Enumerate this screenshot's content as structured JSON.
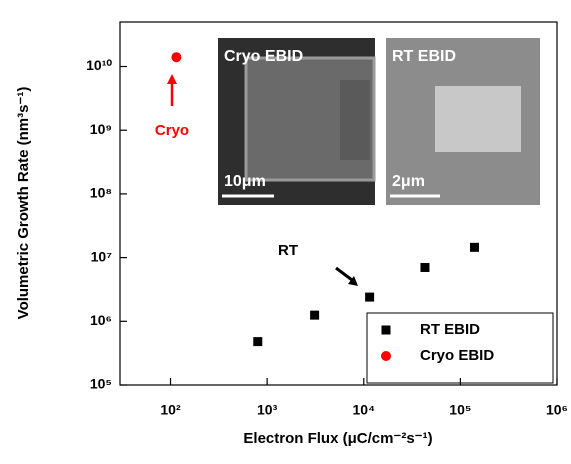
{
  "chart_data": {
    "type": "scatter",
    "x_label": "Electron Flux (μC/cm⁻²s⁻¹)",
    "y_label": "Volumetric Growth Rate (nm³s⁻¹)",
    "log_x": true,
    "log_y": true,
    "xlim": [
      30,
      1000000
    ],
    "ylim": [
      100000,
      50000000000
    ],
    "xticks": [
      {
        "value": 100,
        "label": "10²"
      },
      {
        "value": 1000,
        "label": "10³"
      },
      {
        "value": 10000,
        "label": "10⁴"
      },
      {
        "value": 100000,
        "label": "10⁵"
      },
      {
        "value": 1000000,
        "label": "10⁶"
      }
    ],
    "yticks": [
      {
        "value": 100000,
        "label": "10⁵"
      },
      {
        "value": 1000000,
        "label": "10⁶"
      },
      {
        "value": 10000000,
        "label": "10⁷"
      },
      {
        "value": 100000000,
        "label": "10⁸"
      },
      {
        "value": 1000000000,
        "label": "10⁹"
      },
      {
        "value": 10000000000,
        "label": "10¹⁰"
      }
    ],
    "series": [
      {
        "name": "RT EBID",
        "color": "#000000",
        "marker": "square",
        "x": [
          800,
          3100,
          11500,
          43000,
          140000
        ],
        "values": [
          480000,
          1250000,
          2400000,
          7000000,
          14500000
        ]
      },
      {
        "name": "Cryo EBID",
        "color": "#ff0000",
        "marker": "circle",
        "x": [
          115
        ],
        "values": [
          14000000000
        ]
      }
    ],
    "legend": "lower right",
    "annotations": [
      {
        "text": "Cryo",
        "color": "#ff0000"
      },
      {
        "text": "RT",
        "color": "#000000"
      }
    ],
    "insets": [
      {
        "label": "Cryo EBID",
        "scale_bar": "10μm"
      },
      {
        "label": "RT EBID",
        "scale_bar": "2μm"
      }
    ]
  }
}
